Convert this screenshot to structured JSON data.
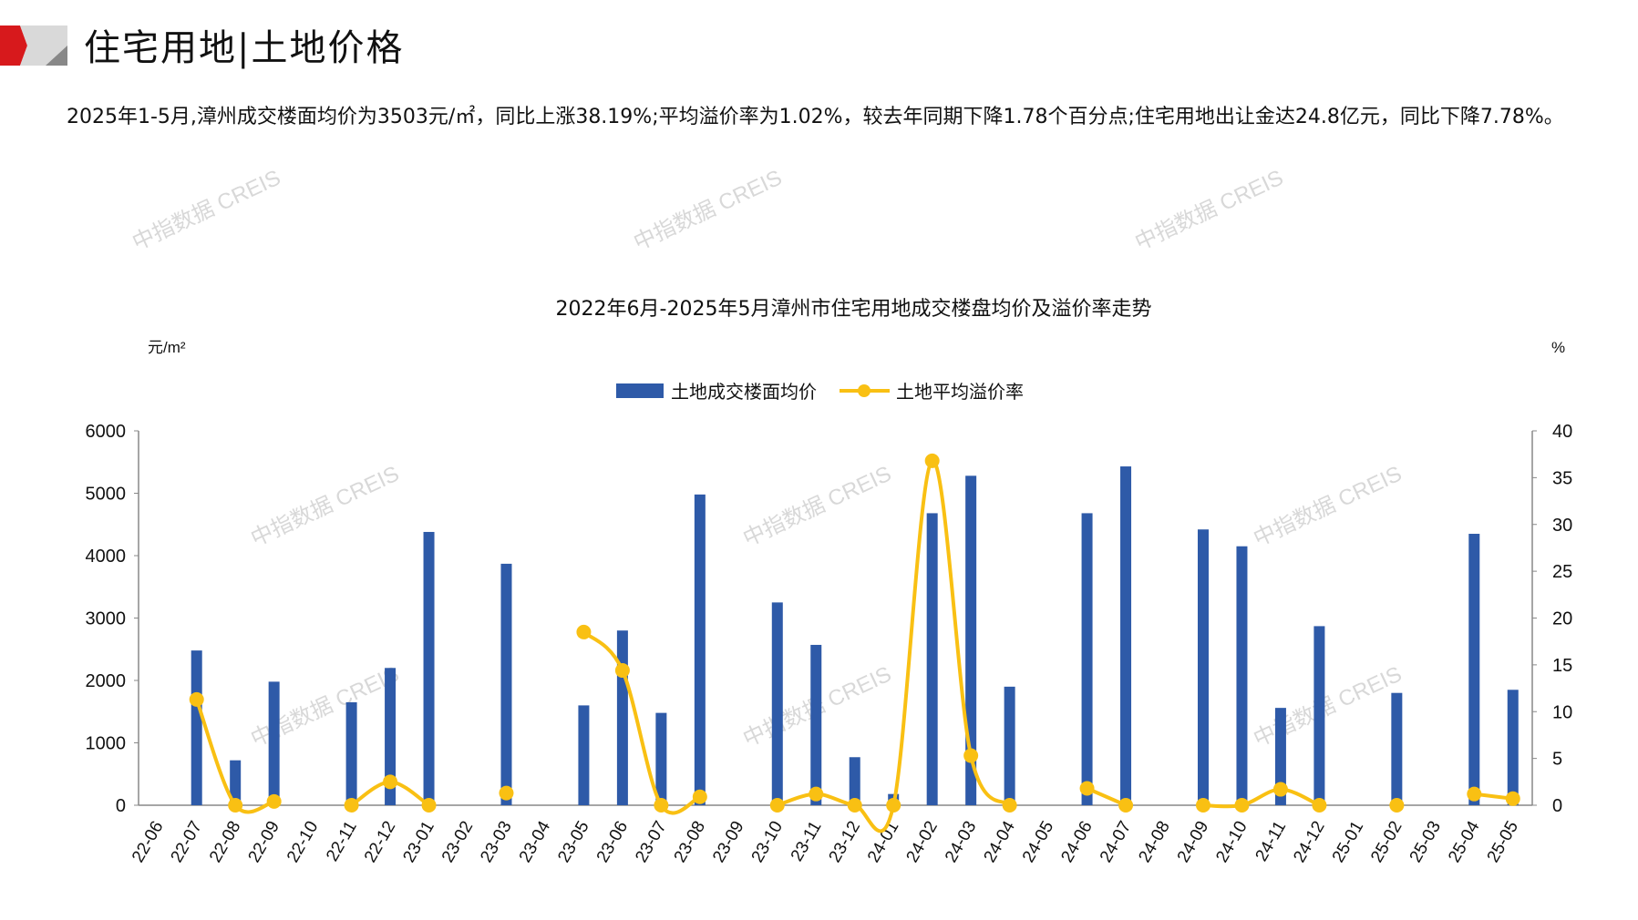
{
  "header": {
    "title": "住宅用地|土地价格"
  },
  "summary": "2025年1-5月,漳州成交楼面均价为3503元/㎡，同比上涨38.19%;平均溢价率为1.02%，较去年同期下降1.78个百分点;住宅用地出让金达24.8亿元，同比下降7.78%。",
  "watermark": "中指数据 CREIS",
  "colors": {
    "bar": "#2E5AA8",
    "line": "#F9C013",
    "accent": "#D7191C"
  },
  "chart_data": {
    "type": "bar+line",
    "title": "2022年6月-2025年5月漳州市住宅用地成交楼盘均价及溢价率走势",
    "ylabel_left": "元/m²",
    "ylabel_right": "%",
    "ylim_left": [
      0,
      6000
    ],
    "yticks_left": [
      0,
      1000,
      2000,
      3000,
      4000,
      5000,
      6000
    ],
    "ylim_right": [
      0,
      40
    ],
    "yticks_right": [
      0,
      5,
      10,
      15,
      20,
      25,
      30,
      35,
      40
    ],
    "legend_position": "top-center",
    "categories": [
      "22-06",
      "22-07",
      "22-08",
      "22-09",
      "22-10",
      "22-11",
      "22-12",
      "23-01",
      "23-02",
      "23-03",
      "23-04",
      "23-05",
      "23-06",
      "23-07",
      "23-08",
      "23-09",
      "23-10",
      "23-11",
      "23-12",
      "24-01",
      "24-02",
      "24-03",
      "24-04",
      "24-05",
      "24-06",
      "24-07",
      "24-08",
      "24-09",
      "24-10",
      "24-11",
      "24-12",
      "25-01",
      "25-02",
      "25-03",
      "25-04",
      "25-05"
    ],
    "series": [
      {
        "name": "土地成交楼面均价",
        "type": "bar",
        "axis": "left",
        "values": [
          0,
          2480,
          720,
          1980,
          0,
          1650,
          2200,
          4380,
          0,
          3870,
          0,
          1600,
          2800,
          1480,
          4980,
          0,
          3250,
          2570,
          770,
          180,
          4680,
          5280,
          1900,
          0,
          4680,
          5430,
          0,
          4420,
          4150,
          1560,
          2870,
          0,
          1800,
          0,
          4350,
          1850
        ]
      },
      {
        "name": "土地平均溢价率",
        "type": "line",
        "axis": "right",
        "values": [
          null,
          11.3,
          0,
          0.4,
          null,
          0,
          2.5,
          0,
          null,
          1.3,
          null,
          18.5,
          14.4,
          0,
          0.9,
          null,
          0,
          1.2,
          0,
          0,
          36.8,
          5.3,
          0,
          null,
          1.8,
          0,
          null,
          0,
          0,
          1.7,
          0,
          null,
          0,
          null,
          1.2,
          0.7
        ]
      }
    ]
  }
}
